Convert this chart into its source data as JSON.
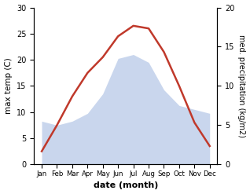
{
  "months": [
    "Jan",
    "Feb",
    "Mar",
    "Apr",
    "May",
    "Jun",
    "Jul",
    "Aug",
    "Sep",
    "Oct",
    "Nov",
    "Dec"
  ],
  "x": [
    1,
    2,
    3,
    4,
    5,
    6,
    7,
    8,
    9,
    10,
    11,
    12
  ],
  "temperature": [
    2.5,
    7.5,
    13.0,
    17.5,
    20.5,
    24.5,
    26.5,
    26.0,
    21.5,
    15.0,
    8.0,
    3.5
  ],
  "precipitation": [
    5.5,
    5.0,
    5.5,
    6.5,
    9.0,
    13.5,
    14.0,
    13.0,
    9.5,
    7.5,
    7.0,
    6.5
  ],
  "temp_color": "#c0392b",
  "precip_color": "#b8c9e8",
  "left_ylim": [
    0,
    30
  ],
  "right_ylim": [
    0,
    20
  ],
  "left_yticks": [
    0,
    5,
    10,
    15,
    20,
    25,
    30
  ],
  "right_yticks": [
    0,
    5,
    10,
    15,
    20
  ],
  "xlabel": "date (month)",
  "ylabel_left": "max temp (C)",
  "ylabel_right": "med. precipitation (kg/m2)",
  "background_color": "#ffffff",
  "figsize": [
    3.18,
    2.47
  ],
  "dpi": 100
}
